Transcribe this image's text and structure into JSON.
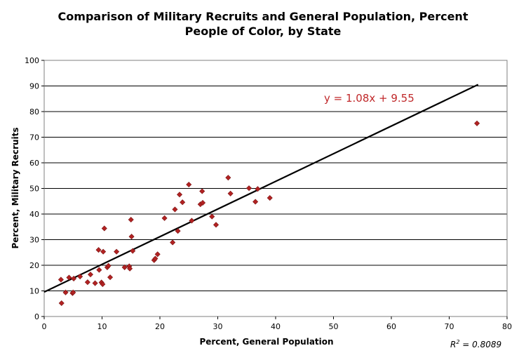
{
  "chart_data": {
    "type": "scatter",
    "title_lines": [
      "Comparison of Military Recruits and General Population, Percent",
      "People of Color, by State"
    ],
    "xlabel": "Percent, General Population",
    "ylabel": "Percent, Military Recruits",
    "xlim": [
      0,
      80
    ],
    "ylim": [
      0,
      100
    ],
    "x_ticks": [
      "0",
      "10",
      "20",
      "30",
      "40",
      "50",
      "60",
      "70",
      "80"
    ],
    "y_ticks": [
      "0",
      "10",
      "20",
      "30",
      "40",
      "50",
      "60",
      "70",
      "80",
      "90",
      "100"
    ],
    "grid": "horizontal",
    "legend": "none",
    "point_color": "#b22222",
    "trendline_color": "#000000",
    "points": [
      {
        "x": 2.9,
        "y": 14.4
      },
      {
        "x": 3.0,
        "y": 5.2
      },
      {
        "x": 3.7,
        "y": 9.4
      },
      {
        "x": 4.3,
        "y": 15.2
      },
      {
        "x": 4.9,
        "y": 9.1
      },
      {
        "x": 5.0,
        "y": 9.4
      },
      {
        "x": 5.1,
        "y": 14.8
      },
      {
        "x": 6.2,
        "y": 15.6
      },
      {
        "x": 7.5,
        "y": 13.4
      },
      {
        "x": 8.0,
        "y": 16.4
      },
      {
        "x": 8.8,
        "y": 13.0
      },
      {
        "x": 9.4,
        "y": 26.0
      },
      {
        "x": 9.5,
        "y": 18.2
      },
      {
        "x": 9.9,
        "y": 13.3
      },
      {
        "x": 10.1,
        "y": 12.6
      },
      {
        "x": 10.2,
        "y": 25.3
      },
      {
        "x": 10.4,
        "y": 34.4
      },
      {
        "x": 10.9,
        "y": 19.2
      },
      {
        "x": 11.1,
        "y": 19.8
      },
      {
        "x": 11.4,
        "y": 15.3
      },
      {
        "x": 12.5,
        "y": 25.3
      },
      {
        "x": 13.9,
        "y": 19.2
      },
      {
        "x": 14.7,
        "y": 19.6
      },
      {
        "x": 14.8,
        "y": 18.7
      },
      {
        "x": 15.0,
        "y": 37.8
      },
      {
        "x": 15.1,
        "y": 31.2
      },
      {
        "x": 15.3,
        "y": 25.6
      },
      {
        "x": 19.0,
        "y": 22.0
      },
      {
        "x": 19.2,
        "y": 22.6
      },
      {
        "x": 19.6,
        "y": 24.3
      },
      {
        "x": 20.8,
        "y": 38.4
      },
      {
        "x": 22.2,
        "y": 28.9
      },
      {
        "x": 22.6,
        "y": 41.8
      },
      {
        "x": 23.1,
        "y": 33.4
      },
      {
        "x": 23.4,
        "y": 47.6
      },
      {
        "x": 23.9,
        "y": 44.6
      },
      {
        "x": 25.0,
        "y": 51.5
      },
      {
        "x": 25.5,
        "y": 37.4
      },
      {
        "x": 27.0,
        "y": 43.8
      },
      {
        "x": 27.3,
        "y": 48.9
      },
      {
        "x": 27.4,
        "y": 44.4
      },
      {
        "x": 29.0,
        "y": 39.0
      },
      {
        "x": 29.7,
        "y": 35.8
      },
      {
        "x": 31.8,
        "y": 54.2
      },
      {
        "x": 32.2,
        "y": 48.0
      },
      {
        "x": 35.4,
        "y": 50.1
      },
      {
        "x": 36.5,
        "y": 44.8
      },
      {
        "x": 36.9,
        "y": 49.8
      },
      {
        "x": 39.0,
        "y": 46.3
      },
      {
        "x": 74.8,
        "y": 75.4
      }
    ],
    "trendline": {
      "slope": 1.08,
      "intercept": 9.55,
      "x_range": [
        0,
        75
      ]
    },
    "annotations": {
      "equation": "y = 1.08x + 9.55",
      "r_squared_prefix": "R",
      "r_squared_exponent": "2",
      "r_squared_value": " = 0.8089"
    }
  }
}
